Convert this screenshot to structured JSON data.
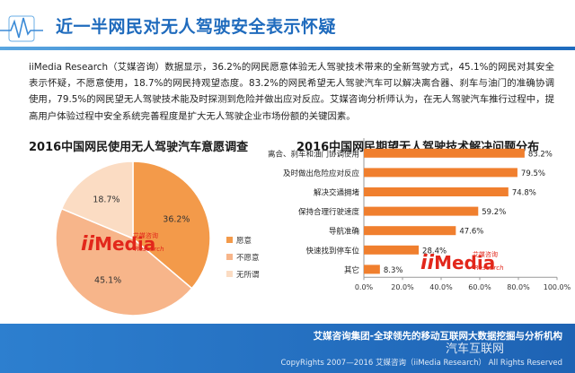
{
  "header": {
    "title": "近一半网民对无人驾驶安全表示怀疑"
  },
  "intro_text": "iiMedia Research（艾媒咨询）数据显示，36.2%的网民愿意体验无人驾驶技术带来的全新驾驶方式，45.1%的网民对其安全表示怀疑，不愿意使用，18.7%的网民持观望态度。83.2%的网民希望无人驾驶汽车可以解决离合器、刹车与油门的准确协调使用，79.5%的网民望无人驾驶技术能及时探测到危险并做出应对反应。艾媒咨询分析师认为，在无人驾驶汽车推行过程中，提高用户体验过程中安全系统完善程度是扩大无人驾驶企业市场份额的关键因素。",
  "colors": {
    "primary_blue": "#1f6bbd",
    "orange": "#f39a4a",
    "salmon": "#f7b58a",
    "light_peach": "#fbdcc3",
    "bar_orange": "#f07f2e"
  },
  "watermark_logo": {
    "ii": "ii",
    "media": "Media",
    "cn": "艾媒咨询",
    "en": "Research"
  },
  "chart_data": [
    {
      "type": "pie",
      "title": "2016中国网民使用无人驾驶汽车意愿调查",
      "slices": [
        {
          "label": "愿意",
          "value": 36.2,
          "display": "36.2%"
        },
        {
          "label": "不愿意",
          "value": 45.1,
          "display": "45.1%"
        },
        {
          "label": "无所谓",
          "value": 18.7,
          "display": "18.7%"
        }
      ],
      "legend_position": "right"
    },
    {
      "type": "bar",
      "orientation": "horizontal",
      "title": "2016中国网民期望无人驾驶技术解决问题分布",
      "categories": [
        "离合、刹车和油门协调使用",
        "及时做出危险应对反应",
        "解决交通拥堵",
        "保持合理行驶速度",
        "导航准确",
        "快速找到停车位",
        "其它"
      ],
      "values": [
        83.2,
        79.5,
        74.8,
        59.2,
        47.6,
        28.4,
        8.3
      ],
      "value_labels": [
        "83.2%",
        "79.5%",
        "74.8%",
        "59.2%",
        "47.6%",
        "28.4%",
        "8.3%"
      ],
      "xlim": [
        0,
        100
      ],
      "xticks": [
        "0.0%",
        "20.0%",
        "40.0%",
        "60.0%",
        "80.0%",
        "100.0%"
      ],
      "grid": false
    }
  ],
  "footer": {
    "slogan": "艾媒咨询集团-全球领先的移动互联网大数据挖掘与分析机构",
    "copyright": "CopyRights 2007—2016 艾媒咨询（iiMedia Research） All Rights Reserved",
    "wechat_watermark": "汽车互联网"
  }
}
